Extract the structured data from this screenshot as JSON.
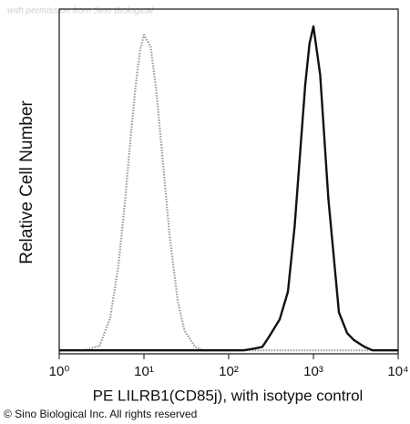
{
  "chart_data": {
    "type": "histogram-overlay",
    "watermark": "with permission from Sino Biological",
    "xlabel": "PE LILRB1(CD85j), with isotype control",
    "ylabel": "Relative Cell Number",
    "footer": "© Sino Biological Inc. All rights reserved",
    "log_x": true,
    "xlim": [
      1,
      10000
    ],
    "xticks": [
      {
        "value": 1,
        "label": "10⁰"
      },
      {
        "value": 10,
        "label": "10¹"
      },
      {
        "value": 100,
        "label": "10²"
      },
      {
        "value": 1000,
        "label": "10³"
      },
      {
        "value": 10000,
        "label": "10⁴"
      }
    ],
    "ylim": [
      0,
      100
    ],
    "x": [
      1,
      1.5,
      2,
      3,
      4,
      5,
      6,
      7,
      8,
      9,
      10,
      12,
      14,
      16,
      20,
      25,
      30,
      40,
      50,
      70,
      100,
      150,
      200,
      250,
      300,
      400,
      500,
      600,
      700,
      800,
      900,
      1000,
      1200,
      1500,
      2000,
      2500,
      3000,
      4000,
      5000,
      7000,
      10000
    ],
    "series": [
      {
        "color": "#9a9a9a",
        "style": "dotted",
        "values": [
          1,
          1,
          1,
          2.3,
          10.5,
          25.7,
          44.7,
          63.4,
          78,
          88,
          92.5,
          89,
          76,
          61,
          34.7,
          15.5,
          6.8,
          2,
          1,
          1,
          1,
          1,
          1,
          1,
          1,
          1,
          1,
          1,
          1,
          1,
          1,
          1,
          1,
          1,
          1,
          1,
          1,
          1,
          1,
          1,
          1
        ]
      },
      {
        "color": "#111111",
        "style": "solid",
        "values": [
          1,
          1,
          1,
          1,
          1,
          1,
          1,
          1,
          1,
          1,
          1,
          1,
          1,
          1,
          1,
          1,
          1,
          1,
          1,
          1,
          1,
          1,
          1.5,
          2,
          5,
          10,
          18,
          37,
          59,
          78,
          90,
          95,
          81,
          45,
          12,
          6,
          4,
          2,
          1,
          1,
          1
        ]
      }
    ]
  }
}
